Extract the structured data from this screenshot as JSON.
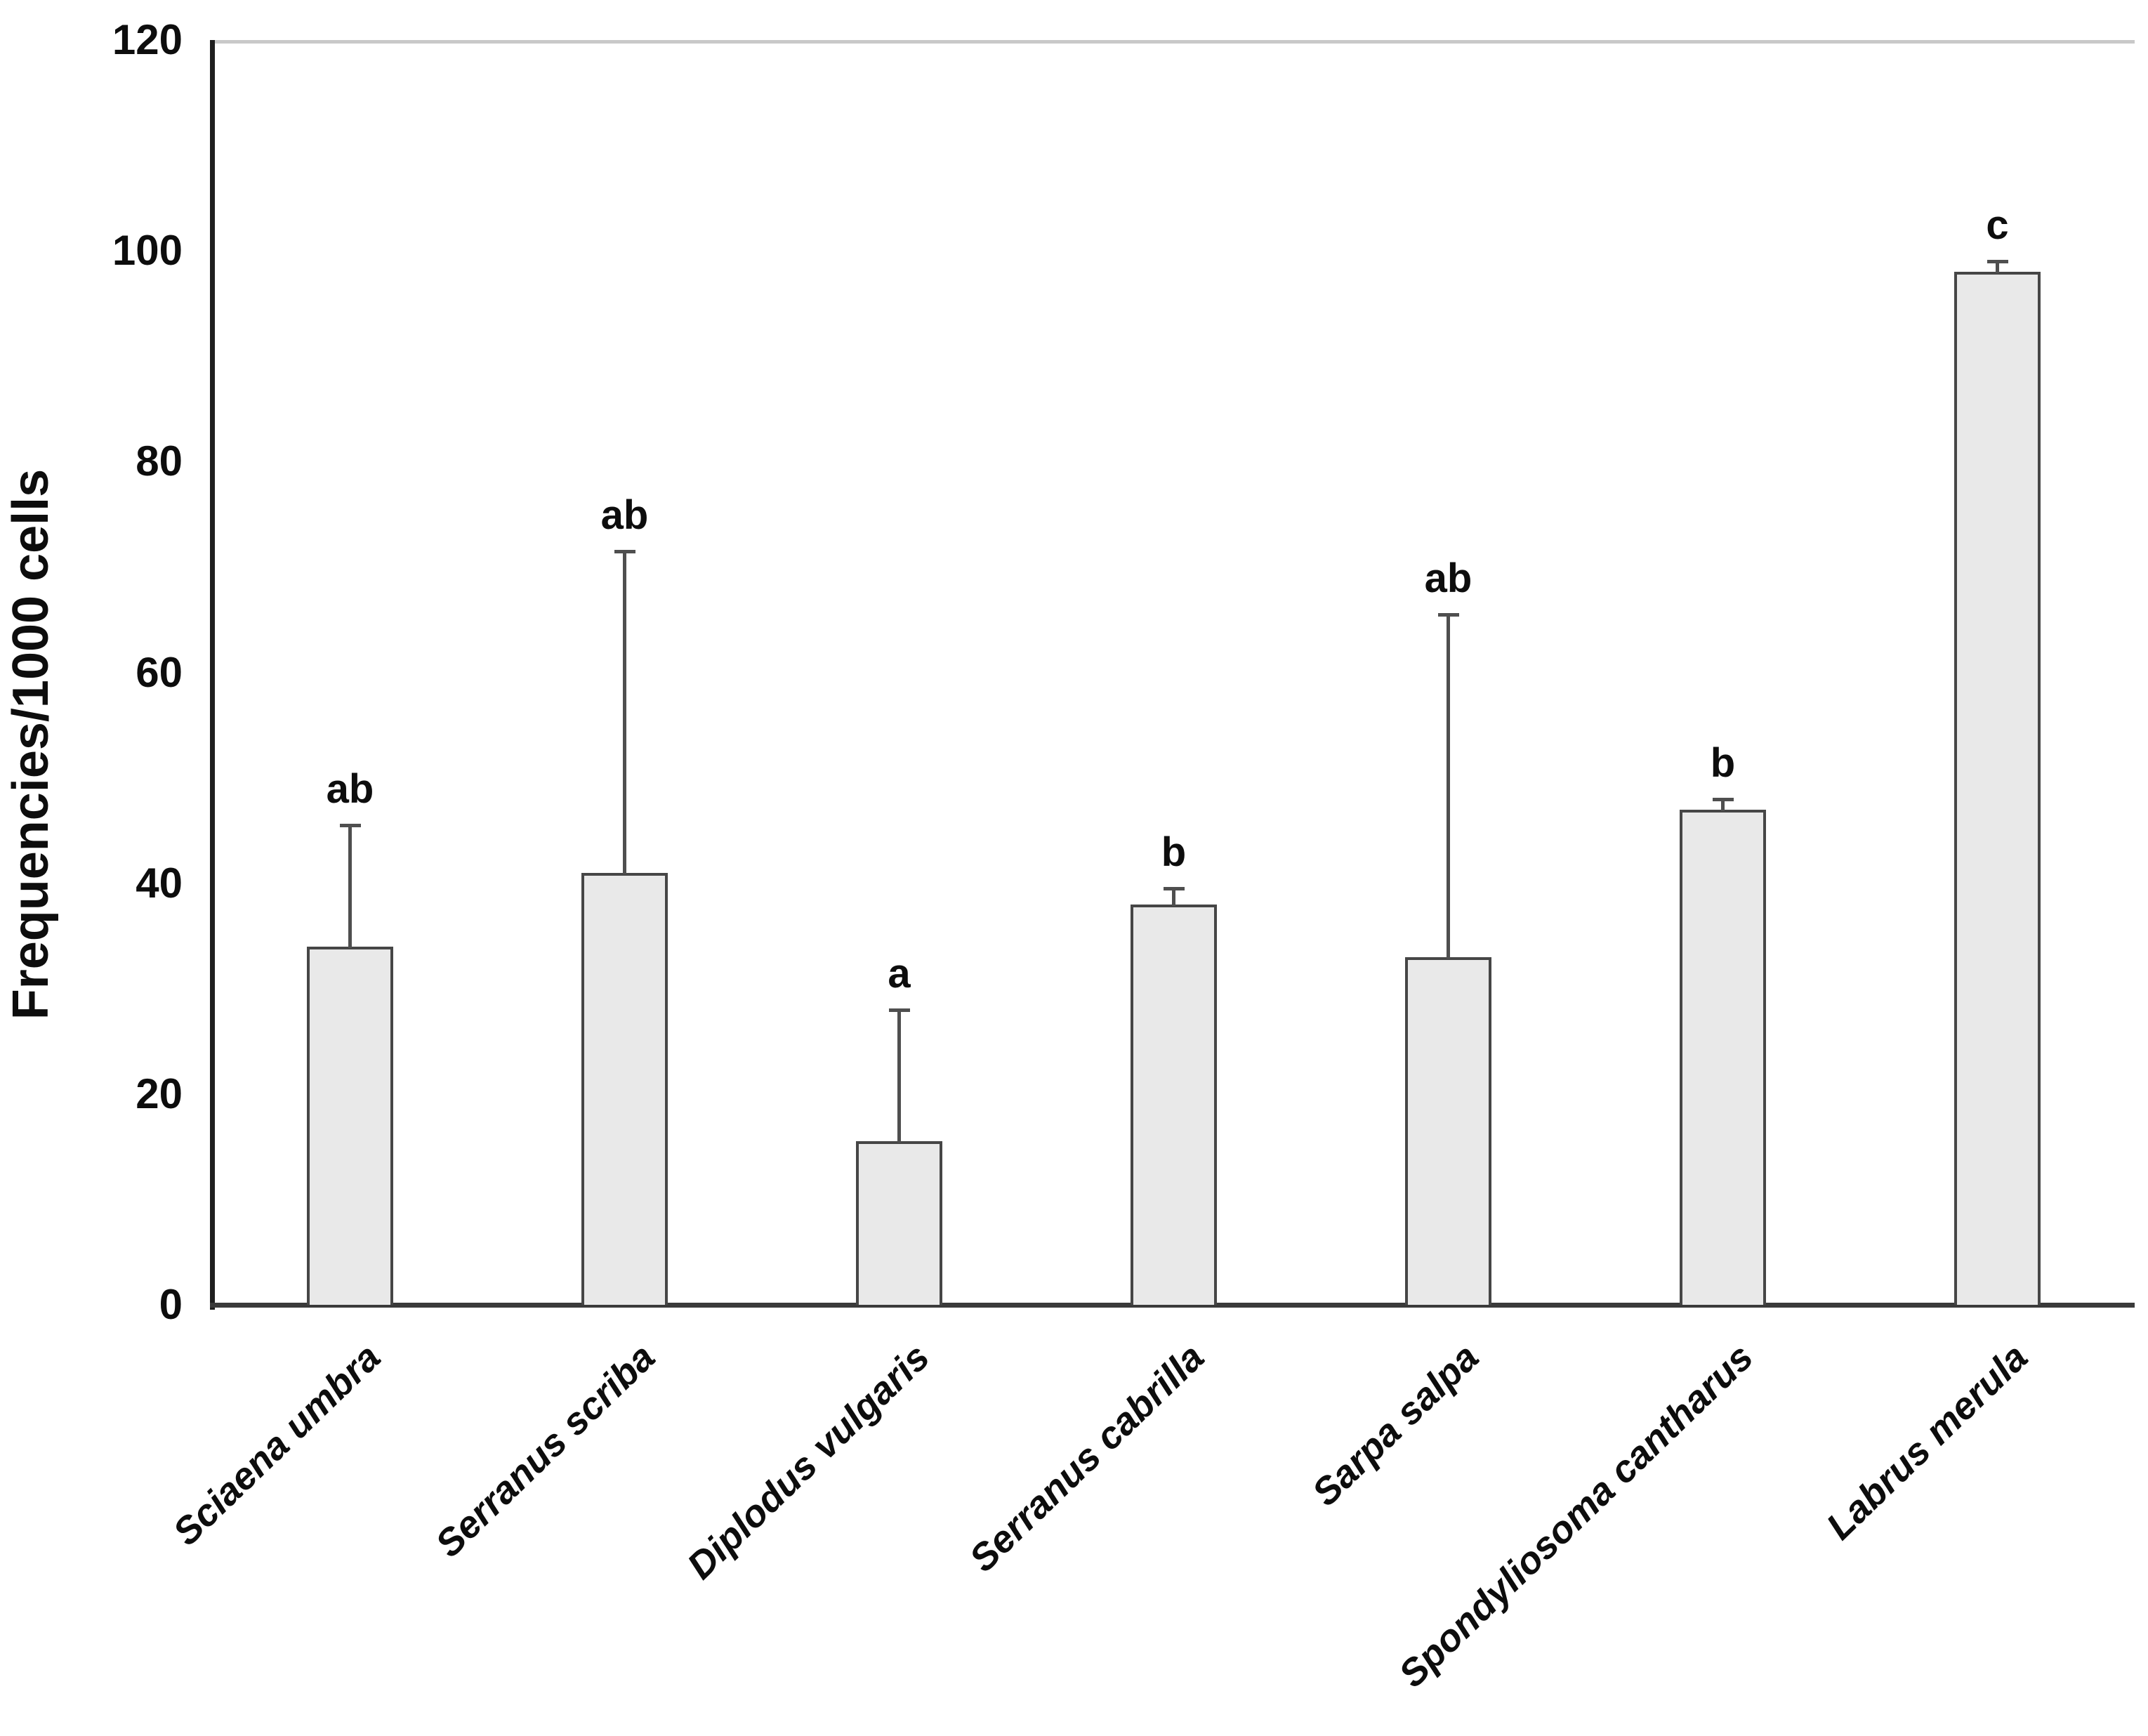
{
  "page": {
    "background_color": "#ffffff"
  },
  "chart_data": {
    "type": "bar",
    "title": "",
    "xlabel": "",
    "ylabel": "Frequencies/1000 cells",
    "ylim": [
      0,
      120
    ],
    "yticks": [
      0,
      20,
      40,
      60,
      80,
      100,
      120
    ],
    "grid": false,
    "legend": false,
    "categories": [
      "Sciaena umbra",
      "Serranus scriba",
      "Diplodus vulgaris",
      "Serranus cabrilla",
      "Sarpa salpa",
      "Spondyliosoma cantharus",
      "Labrus merula"
    ],
    "values": [
      34,
      41,
      15.5,
      38,
      33,
      47,
      98
    ],
    "upper_errors": [
      11.5,
      30.5,
      12.5,
      1.5,
      32.5,
      1,
      1
    ],
    "significance_letters": [
      "ab",
      "ab",
      "a",
      "b",
      "ab",
      "b",
      "c"
    ],
    "bar_fill_color": "#e9e9e9",
    "bar_border_color": "#464646",
    "error_bar_color": "#4f4f4f",
    "axis_color": "#1f1f1f",
    "baseline_color": "#3a3a3a",
    "top_gridline_color": "#c9c9c9",
    "text_color": "#0d0d0d"
  }
}
